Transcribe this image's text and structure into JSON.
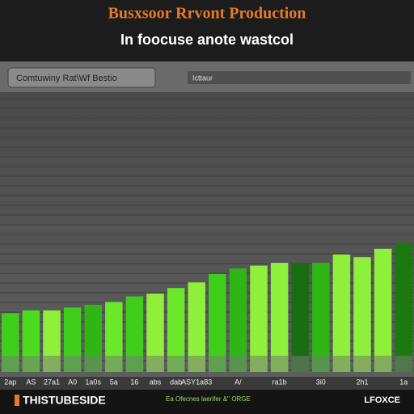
{
  "chart_data": {
    "type": "bar",
    "title": "Busxsoor Rrvont Production",
    "subtitle": "In foocuse anote wastcol",
    "toolbar_label": "Comtuwiny Rat\\Wf Bestio",
    "toolbar_tab": "Icttaur",
    "categories": [
      "2ap",
      "AS",
      "27a1",
      "A0",
      "1a0s",
      "5a",
      "16",
      "abs",
      "dab",
      "ASY1a83",
      null,
      "A/",
      null,
      "ra1b",
      null,
      "3i0",
      null,
      "2h1",
      null,
      "1a"
    ],
    "values": [
      21,
      22,
      22,
      23,
      24,
      25,
      27,
      28,
      30,
      32,
      35,
      37,
      38,
      39,
      39,
      39,
      42,
      41,
      44,
      46
    ],
    "colors": [
      "#3fcf1a",
      "#4ddc1c",
      "#8ef03a",
      "#3fcf1a",
      "#2fb515",
      "#6be82a",
      "#3fcf1a",
      "#8ef03a",
      "#6be82a",
      "#8ef03a",
      "#3fcf1a",
      "#2fb515",
      "#8ef03a",
      "#8ef03a",
      "#1a6e12",
      "#2fb515",
      "#8ef03a",
      "#8ef03a",
      "#8ef03a",
      "#1a7a10"
    ],
    "ylim": [
      0,
      100
    ],
    "grid": true,
    "footer_left": "THISTUBESIDE",
    "footer_mid": "Ea Ofecnes laerifer &'' ORGE",
    "footer_right": "LFOXCE"
  }
}
